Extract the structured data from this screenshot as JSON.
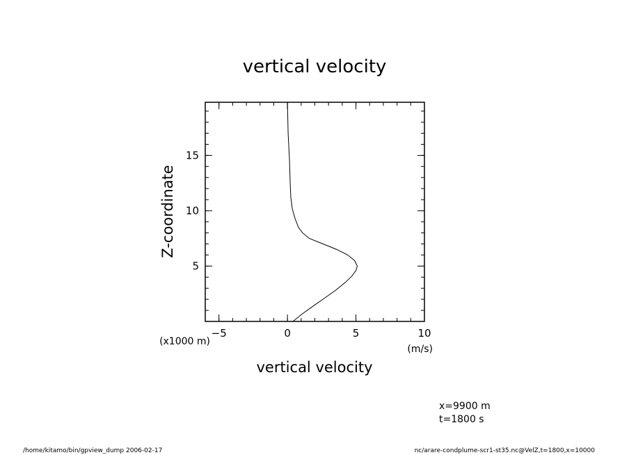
{
  "chart_data": {
    "type": "line",
    "title": "vertical velocity",
    "xlabel": "vertical velocity",
    "ylabel": "Z-coordinate",
    "x_unit": "(m/s)",
    "y_unit": "(x1000 m)",
    "xlim": [
      -6,
      10
    ],
    "ylim": [
      0,
      19.8
    ],
    "x_ticks": [
      -5,
      0,
      5,
      10
    ],
    "y_ticks": [
      5,
      10,
      15
    ],
    "grid": false,
    "series": [
      {
        "x": [
          0.4,
          1.1,
          1.9,
          2.7,
          3.5,
          4.2,
          4.7,
          5.0,
          5.1,
          4.9,
          4.4,
          3.6,
          2.6,
          1.6,
          1.1,
          0.8,
          0.55,
          0.35,
          0.25,
          0.2,
          0.15,
          0.05,
          0.0
        ],
        "y": [
          0.0,
          0.7,
          1.4,
          2.1,
          2.8,
          3.5,
          4.1,
          4.6,
          5.0,
          5.5,
          6.0,
          6.5,
          7.0,
          7.5,
          8.0,
          8.5,
          9.3,
          10.2,
          11.2,
          12.4,
          14.5,
          17.0,
          19.8
        ]
      }
    ]
  },
  "annotations": {
    "x_info": "x=9900  m",
    "t_info": "t=1800  s"
  },
  "footer": {
    "left": "/home/kitamo/bin/gpview_dump  2006-02-17",
    "right": "nc/arare-condplume-scr1-st35.nc@VelZ,t=1800,x=10000"
  }
}
